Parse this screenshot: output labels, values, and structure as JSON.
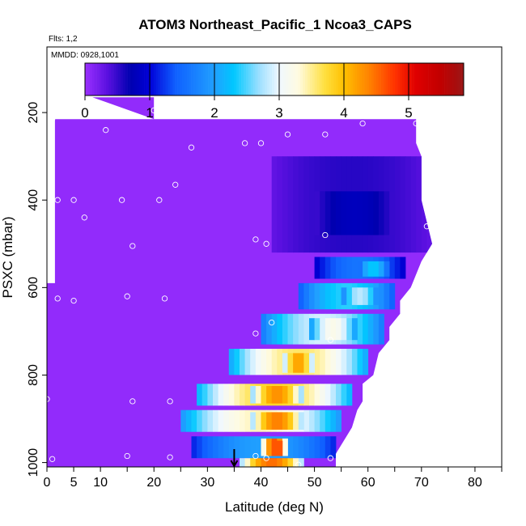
{
  "chart_data": {
    "type": "heatmap",
    "title": "ATOM3 Northeast_Pacific_1 Ncoa3_CAPS",
    "flights_label": "Flts: 1,2",
    "dates_label": "MMDD: 0928,1001",
    "xlabel": "Latitude (deg N)",
    "ylabel": "PSXC (mbar)",
    "xlim": [
      0,
      85
    ],
    "ylim": [
      1010,
      50
    ],
    "x_ticks": [
      0,
      5,
      10,
      20,
      30,
      40,
      50,
      60,
      70,
      80
    ],
    "x_minor_ticks": [
      15,
      25,
      35,
      45,
      55,
      65,
      75,
      85
    ],
    "y_ticks": [
      200,
      400,
      600,
      800,
      1000
    ],
    "colorbar": {
      "range": [
        0,
        5.85
      ],
      "ticks": [
        0,
        1,
        2,
        3,
        4,
        5
      ],
      "stops": [
        {
          "v": 0.0,
          "c": "#9b30ff"
        },
        {
          "v": 0.35,
          "c": "#5a10e0"
        },
        {
          "v": 0.7,
          "c": "#0000b0"
        },
        {
          "v": 1.0,
          "c": "#0000d8"
        },
        {
          "v": 1.4,
          "c": "#1060ff"
        },
        {
          "v": 2.0,
          "c": "#20a0ff"
        },
        {
          "v": 2.3,
          "c": "#00c8ff"
        },
        {
          "v": 2.7,
          "c": "#a0e0ff"
        },
        {
          "v": 3.0,
          "c": "#f0f8ff"
        },
        {
          "v": 3.3,
          "c": "#fffbe0"
        },
        {
          "v": 3.7,
          "c": "#ffe040"
        },
        {
          "v": 4.0,
          "c": "#ffc000"
        },
        {
          "v": 4.4,
          "c": "#ff8000"
        },
        {
          "v": 4.8,
          "c": "#ff3000"
        },
        {
          "v": 5.1,
          "c": "#e00000"
        },
        {
          "v": 5.5,
          "c": "#c00000"
        },
        {
          "v": 5.85,
          "c": "#9a1515"
        }
      ]
    },
    "background_value": 0.05,
    "fill_region": {
      "top_pressure": [
        [
          8.5,
          165
        ],
        [
          20,
          165
        ],
        [
          20,
          215
        ],
        [
          1.5,
          215
        ],
        [
          1.5,
          590
        ],
        [
          0,
          590
        ],
        [
          0,
          1010
        ],
        [
          54,
          1010
        ],
        [
          54,
          980
        ],
        [
          57,
          920
        ],
        [
          58,
          880
        ],
        [
          59,
          860
        ],
        [
          59,
          820
        ],
        [
          61,
          800
        ],
        [
          62,
          750
        ],
        [
          64,
          720
        ],
        [
          64,
          690
        ],
        [
          66,
          660
        ],
        [
          66,
          630
        ],
        [
          68,
          600
        ],
        [
          69,
          570
        ],
        [
          70,
          540
        ],
        [
          71,
          520
        ],
        [
          72,
          500
        ],
        [
          71,
          450
        ],
        [
          70,
          400
        ],
        [
          70,
          300
        ],
        [
          69,
          270
        ],
        [
          69,
          215
        ],
        [
          20,
          215
        ]
      ]
    },
    "features": [
      {
        "name": "upper-weak",
        "lat": [
          42,
          72
        ],
        "p": [
          300,
          520
        ],
        "v": 0.55
      },
      {
        "name": "upper-core",
        "lat": [
          50,
          65
        ],
        "p": [
          380,
          480
        ],
        "v": 0.8
      },
      {
        "name": "band-550",
        "lat": [
          50,
          67
        ],
        "p": [
          530,
          580
        ],
        "v": 1.6
      },
      {
        "name": "band-550-peak",
        "lat": [
          58,
          64
        ],
        "p": [
          540,
          575
        ],
        "v": 2.3
      },
      {
        "name": "band-620",
        "lat": [
          47,
          65
        ],
        "p": [
          590,
          650
        ],
        "v": 2.4
      },
      {
        "name": "band-620-peak",
        "lat": [
          55,
          62
        ],
        "p": [
          600,
          640
        ],
        "v": 2.8
      },
      {
        "name": "band-700",
        "lat": [
          40,
          63
        ],
        "p": [
          660,
          730
        ],
        "v": 2.9
      },
      {
        "name": "band-700-peak",
        "lat": [
          49,
          58
        ],
        "p": [
          670,
          720
        ],
        "v": 3.2
      },
      {
        "name": "band-780",
        "lat": [
          34,
          60
        ],
        "p": [
          740,
          800
        ],
        "v": 3.6
      },
      {
        "name": "band-780-peak",
        "lat": [
          44,
          50
        ],
        "p": [
          750,
          795
        ],
        "v": 4.2
      },
      {
        "name": "band-850",
        "lat": [
          28,
          57
        ],
        "p": [
          820,
          870
        ],
        "v": 3.8
      },
      {
        "name": "band-850-peak",
        "lat": [
          38,
          48
        ],
        "p": [
          825,
          865
        ],
        "v": 4.3
      },
      {
        "name": "band-900",
        "lat": [
          25,
          55
        ],
        "p": [
          880,
          930
        ],
        "v": 3.4
      },
      {
        "name": "band-900-peak",
        "lat": [
          38,
          48
        ],
        "p": [
          885,
          925
        ],
        "v": 4.4
      },
      {
        "name": "band-960",
        "lat": [
          27,
          54
        ],
        "p": [
          940,
          990
        ],
        "v": 2.0
      },
      {
        "name": "band-960-peak",
        "lat": [
          40,
          45
        ],
        "p": [
          945,
          985
        ],
        "v": 4.6
      },
      {
        "name": "band-960-hot",
        "lat": [
          42,
          44
        ],
        "p": [
          950,
          985
        ],
        "v": 5.2
      },
      {
        "name": "surface",
        "lat": [
          36,
          48
        ],
        "p": [
          990,
          1010
        ],
        "v": 4.5
      }
    ],
    "points": [
      [
        1,
        215
      ],
      [
        10,
        200
      ],
      [
        20,
        195
      ],
      [
        11,
        240
      ],
      [
        27,
        280
      ],
      [
        37,
        270
      ],
      [
        40,
        270
      ],
      [
        45,
        250
      ],
      [
        52,
        250
      ],
      [
        59,
        225
      ],
      [
        69,
        225
      ],
      [
        24,
        365
      ],
      [
        2,
        400
      ],
      [
        5,
        400
      ],
      [
        14,
        400
      ],
      [
        21,
        400
      ],
      [
        7,
        440
      ],
      [
        71,
        460
      ],
      [
        16,
        505
      ],
      [
        39,
        490
      ],
      [
        41,
        500
      ],
      [
        52,
        480
      ],
      [
        2,
        625
      ],
      [
        5,
        630
      ],
      [
        15,
        620
      ],
      [
        22,
        625
      ],
      [
        39,
        705
      ],
      [
        42,
        680
      ],
      [
        53,
        720
      ],
      [
        0,
        855
      ],
      [
        16,
        860
      ],
      [
        23,
        860
      ],
      [
        15,
        985
      ],
      [
        23,
        988
      ],
      [
        1,
        992
      ],
      [
        39,
        985
      ],
      [
        41,
        990
      ],
      [
        47,
        1005
      ],
      [
        53,
        990
      ]
    ],
    "arrow_marker_lat": 35
  }
}
